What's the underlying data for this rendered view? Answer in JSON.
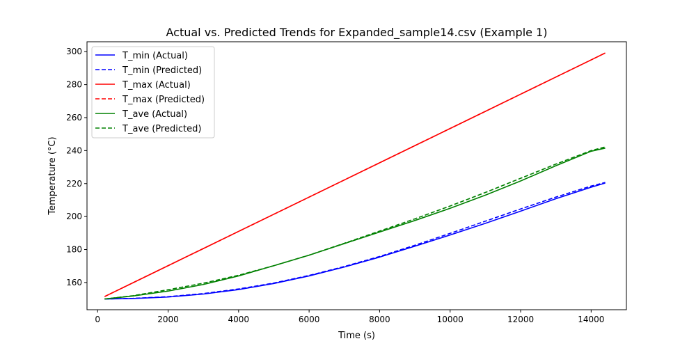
{
  "chart_data": {
    "type": "line",
    "title": "Actual vs. Predicted Trends for Expanded_sample14.csv (Example 1)",
    "xlabel": "Time (s)",
    "ylabel": "Temperature (°C)",
    "xlim": [
      -300,
      15000
    ],
    "ylim": [
      143.5,
      306
    ],
    "xticks": [
      0,
      2000,
      4000,
      6000,
      8000,
      10000,
      12000,
      14000
    ],
    "yticks": [
      160,
      180,
      200,
      220,
      240,
      260,
      280,
      300
    ],
    "grid": false,
    "legend_position": "top-left",
    "x": [
      200,
      1000,
      2000,
      3000,
      4000,
      5000,
      6000,
      7000,
      8000,
      9000,
      10000,
      11000,
      12000,
      13000,
      14000,
      14400
    ],
    "series": [
      {
        "name": "T_min (Actual)",
        "color": "#0000ff",
        "dash": "solid",
        "values": [
          150.0,
          150.3,
          151.2,
          153.0,
          155.7,
          159.4,
          164.0,
          169.4,
          175.4,
          182.0,
          188.8,
          195.9,
          203.3,
          210.8,
          217.8,
          220.3
        ]
      },
      {
        "name": "T_min (Predicted)",
        "color": "#0000ff",
        "dash": "dashed",
        "values": [
          150.0,
          150.4,
          151.4,
          153.3,
          156.1,
          159.7,
          164.3,
          169.7,
          175.8,
          182.6,
          189.8,
          197.2,
          204.6,
          211.8,
          218.5,
          220.7
        ]
      },
      {
        "name": "T_max (Actual)",
        "color": "#ff0000",
        "dash": "solid",
        "values": [
          151.5,
          159.8,
          170.2,
          180.6,
          191.0,
          201.4,
          211.8,
          222.2,
          232.6,
          243.0,
          253.4,
          263.8,
          274.2,
          284.6,
          295.0,
          299.2
        ]
      },
      {
        "name": "T_max (Predicted)",
        "color": "#ff0000",
        "dash": "dashed",
        "values": [
          151.5,
          159.8,
          170.2,
          180.6,
          191.0,
          201.4,
          211.8,
          222.2,
          232.6,
          243.0,
          253.4,
          263.8,
          274.2,
          284.6,
          295.0,
          299.2
        ]
      },
      {
        "name": "T_ave (Actual)",
        "color": "#008000",
        "dash": "solid",
        "values": [
          150.0,
          151.8,
          154.8,
          158.8,
          164.0,
          170.2,
          176.6,
          183.6,
          190.6,
          197.6,
          205.0,
          213.0,
          221.6,
          230.8,
          239.6,
          241.5
        ]
      },
      {
        "name": "T_ave (Predicted)",
        "color": "#008000",
        "dash": "dashed",
        "values": [
          150.0,
          152.0,
          155.6,
          159.6,
          164.4,
          170.2,
          176.6,
          183.8,
          191.2,
          198.6,
          206.4,
          214.6,
          223.2,
          231.8,
          240.0,
          242.2
        ]
      }
    ]
  }
}
